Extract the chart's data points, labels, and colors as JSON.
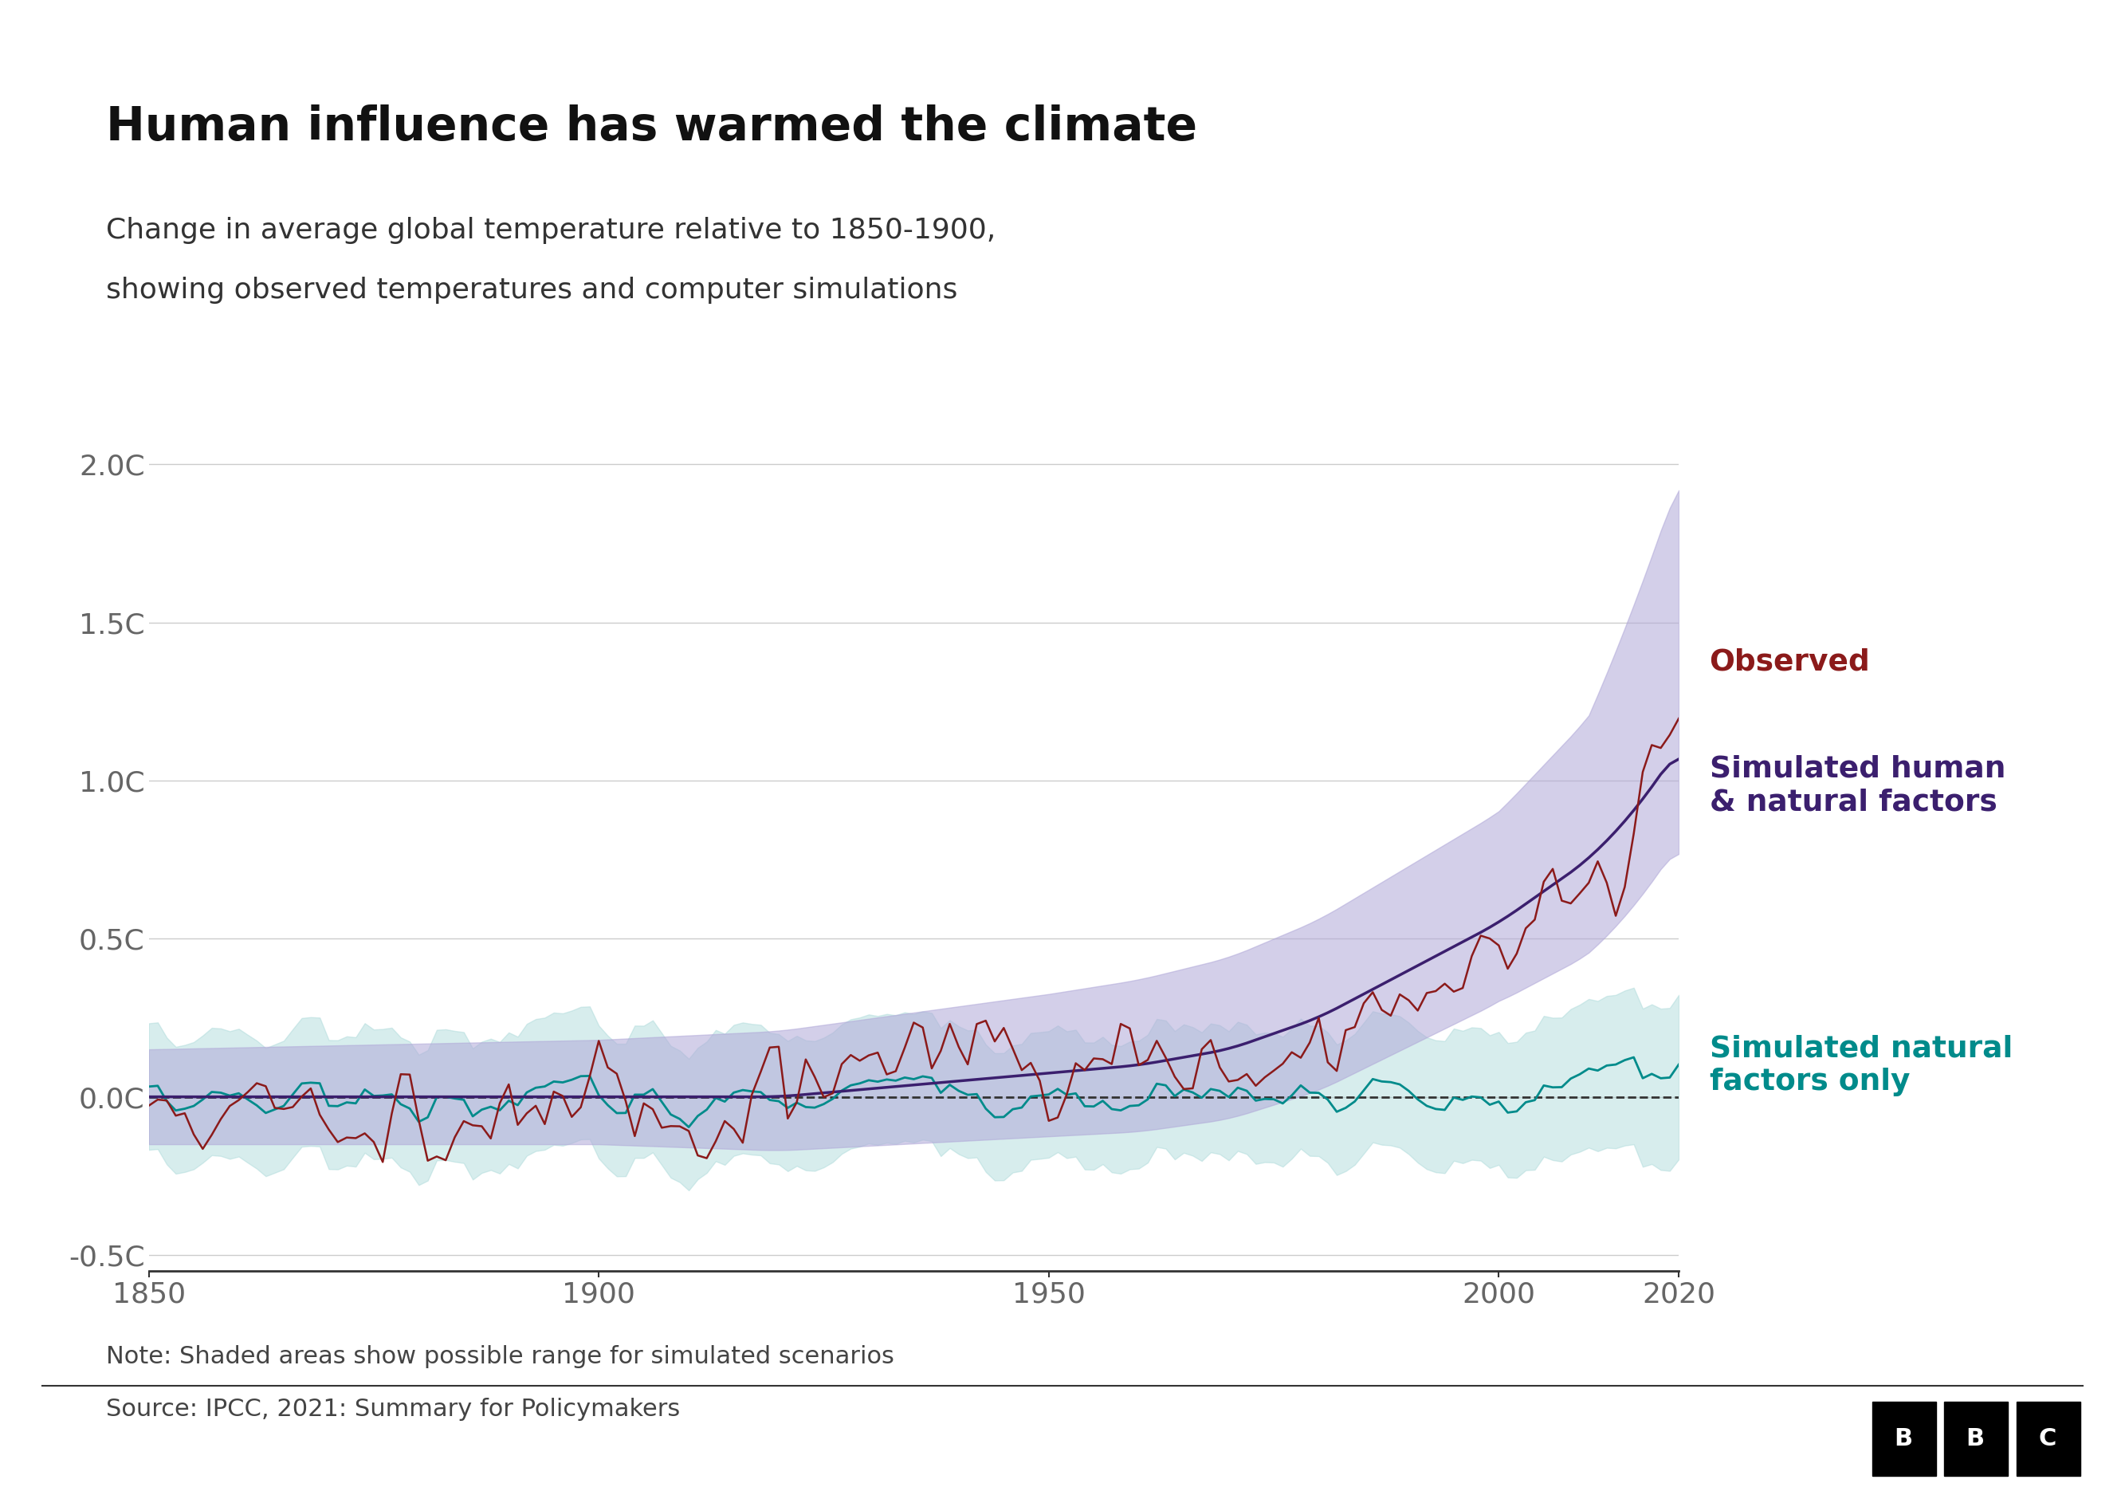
{
  "title": "Human influence has warmed the climate",
  "subtitle_line1": "Change in average global temperature relative to 1850-1900,",
  "subtitle_line2": "showing observed temperatures and computer simulations",
  "note": "Note: Shaded areas show possible range for simulated scenarios",
  "source": "Source: IPCC, 2021: Summary for Policymakers",
  "year_start": 1850,
  "year_end": 2020,
  "ylim_min": -0.55,
  "ylim_max": 2.05,
  "yticks": [
    -0.5,
    0.0,
    0.5,
    1.0,
    1.5,
    2.0
  ],
  "ytick_labels": [
    "-0.5C",
    "0.0C",
    "0.5C",
    "1.0C",
    "1.5C",
    "2.0C"
  ],
  "xticks": [
    1850,
    1900,
    1950,
    2000,
    2020
  ],
  "observed_color": "#8B1A1A",
  "human_natural_color": "#3B1F6E",
  "natural_only_color": "#008B8B",
  "human_natural_fill_color": "#B0A8D8",
  "natural_only_fill_color": "#A8D8D8",
  "background_color": "#ffffff",
  "title_fontsize": 42,
  "subtitle_fontsize": 26,
  "label_fontsize": 28,
  "tick_fontsize": 26,
  "note_fontsize": 22,
  "source_fontsize": 22,
  "legend_fontsize": 27
}
